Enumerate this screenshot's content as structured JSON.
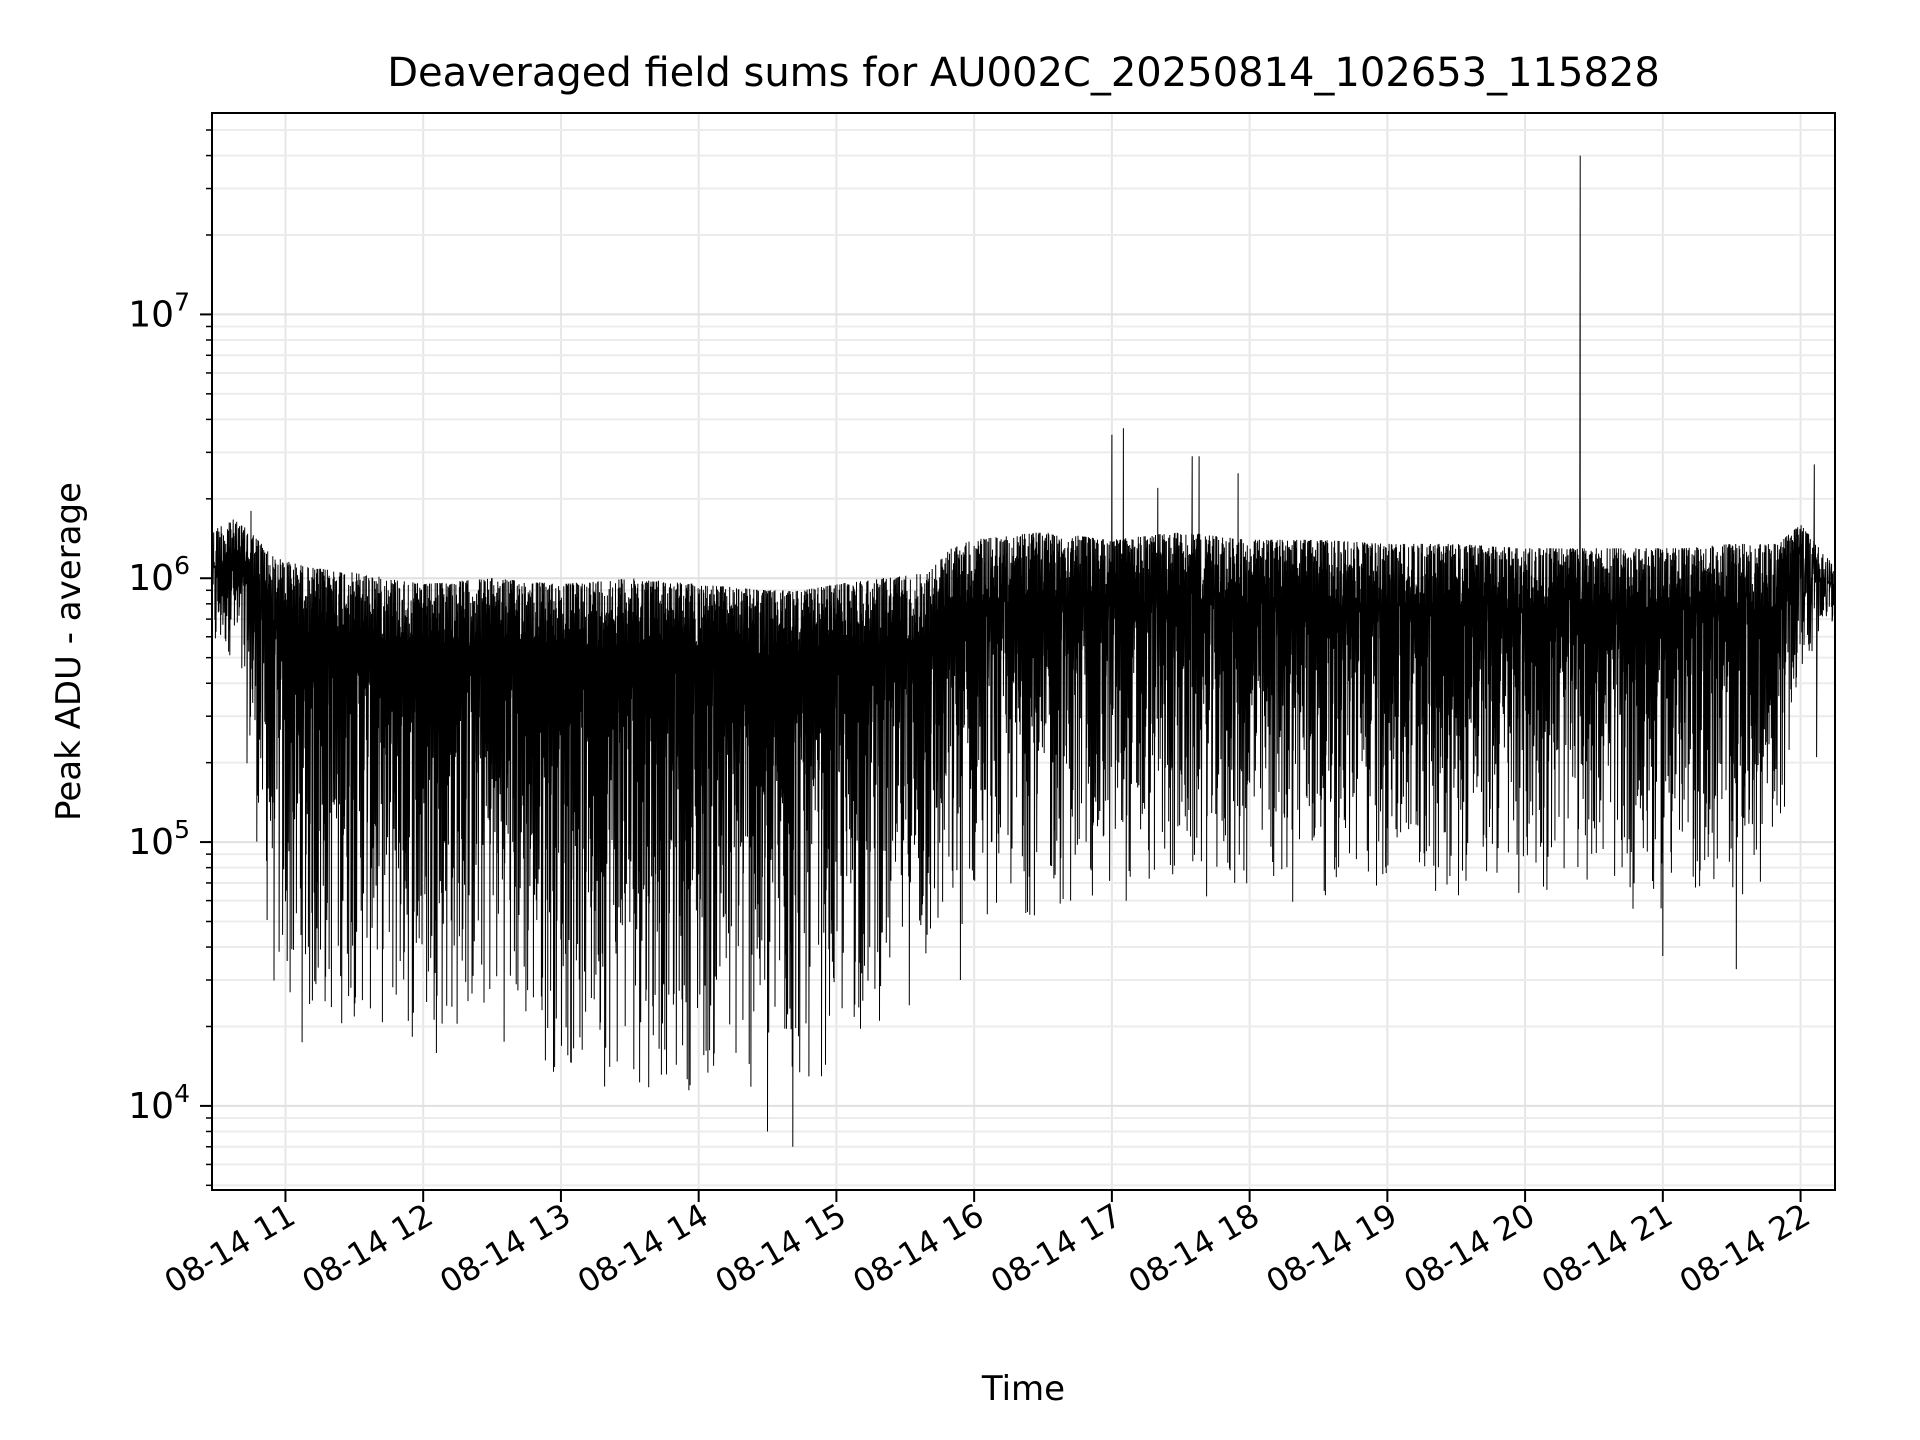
{
  "chart_data": {
    "type": "line",
    "title": "Deaveraged field sums for AU002C_20250814_102653_115828",
    "xlabel": "Time",
    "ylabel": "Peak ADU - average",
    "yscale": "log",
    "grid": true,
    "line_color": "#000000",
    "xlim": [
      "2025-08-14 10:28",
      "2025-08-14 22:15"
    ],
    "ylim": [
      4800,
      58000000
    ],
    "x_ticks": [
      {
        "value": "2025-08-14 11:00",
        "label": "08-14 11"
      },
      {
        "value": "2025-08-14 12:00",
        "label": "08-14 12"
      },
      {
        "value": "2025-08-14 13:00",
        "label": "08-14 13"
      },
      {
        "value": "2025-08-14 14:00",
        "label": "08-14 14"
      },
      {
        "value": "2025-08-14 15:00",
        "label": "08-14 15"
      },
      {
        "value": "2025-08-14 16:00",
        "label": "08-14 16"
      },
      {
        "value": "2025-08-14 17:00",
        "label": "08-14 17"
      },
      {
        "value": "2025-08-14 18:00",
        "label": "08-14 18"
      },
      {
        "value": "2025-08-14 19:00",
        "label": "08-14 19"
      },
      {
        "value": "2025-08-14 20:00",
        "label": "08-14 20"
      },
      {
        "value": "2025-08-14 21:00",
        "label": "08-14 21"
      },
      {
        "value": "2025-08-14 22:00",
        "label": "08-14 22"
      }
    ],
    "y_ticks": [
      {
        "value": 10000,
        "base": "10",
        "exp": "4"
      },
      {
        "value": 100000,
        "base": "10",
        "exp": "5"
      },
      {
        "value": 1000000,
        "base": "10",
        "exp": "6"
      },
      {
        "value": 10000000,
        "base": "10",
        "exp": "7"
      }
    ],
    "series": [
      {
        "envelope": [
          {
            "x": "2025-08-14 10:28",
            "upper": 1500000,
            "lower": 400000
          },
          {
            "x": "2025-08-14 10:36",
            "upper": 1700000,
            "lower": 500000
          },
          {
            "x": "2025-08-14 10:45",
            "upper": 1500000,
            "lower": 150000
          },
          {
            "x": "2025-08-14 10:55",
            "upper": 1200000,
            "lower": 22000
          },
          {
            "x": "2025-08-14 11:10",
            "upper": 1100000,
            "lower": 15000
          },
          {
            "x": "2025-08-14 11:30",
            "upper": 1050000,
            "lower": 20000
          },
          {
            "x": "2025-08-14 12:00",
            "upper": 950000,
            "lower": 15000
          },
          {
            "x": "2025-08-14 12:30",
            "upper": 1000000,
            "lower": 18000
          },
          {
            "x": "2025-08-14 13:00",
            "upper": 950000,
            "lower": 12000
          },
          {
            "x": "2025-08-14 13:30",
            "upper": 1000000,
            "lower": 11000
          },
          {
            "x": "2025-08-14 14:00",
            "upper": 950000,
            "lower": 11000
          },
          {
            "x": "2025-08-14 14:30",
            "upper": 900000,
            "lower": 9000
          },
          {
            "x": "2025-08-14 14:45",
            "upper": 900000,
            "lower": 10000
          },
          {
            "x": "2025-08-14 15:00",
            "upper": 950000,
            "lower": 14000
          },
          {
            "x": "2025-08-14 15:20",
            "upper": 1000000,
            "lower": 20000
          },
          {
            "x": "2025-08-14 15:40",
            "upper": 1050000,
            "lower": 25000
          },
          {
            "x": "2025-08-14 15:50",
            "upper": 1300000,
            "lower": 35000
          },
          {
            "x": "2025-08-14 16:00",
            "upper": 1400000,
            "lower": 50000
          },
          {
            "x": "2025-08-14 16:30",
            "upper": 1500000,
            "lower": 50000
          },
          {
            "x": "2025-08-14 17:00",
            "upper": 1400000,
            "lower": 55000
          },
          {
            "x": "2025-08-14 17:30",
            "upper": 1500000,
            "lower": 60000
          },
          {
            "x": "2025-08-14 18:00",
            "upper": 1400000,
            "lower": 55000
          },
          {
            "x": "2025-08-14 18:30",
            "upper": 1400000,
            "lower": 60000
          },
          {
            "x": "2025-08-14 19:00",
            "upper": 1350000,
            "lower": 60000
          },
          {
            "x": "2025-08-14 19:30",
            "upper": 1350000,
            "lower": 60000
          },
          {
            "x": "2025-08-14 20:00",
            "upper": 1300000,
            "lower": 60000
          },
          {
            "x": "2025-08-14 20:30",
            "upper": 1300000,
            "lower": 70000
          },
          {
            "x": "2025-08-14 20:50",
            "upper": 1300000,
            "lower": 50000
          },
          {
            "x": "2025-08-14 21:10",
            "upper": 1300000,
            "lower": 55000
          },
          {
            "x": "2025-08-14 21:30",
            "upper": 1350000,
            "lower": 55000
          },
          {
            "x": "2025-08-14 21:50",
            "upper": 1350000,
            "lower": 80000
          },
          {
            "x": "2025-08-14 22:00",
            "upper": 1600000,
            "lower": 400000
          },
          {
            "x": "2025-08-14 22:15",
            "upper": 1100000,
            "lower": 700000
          }
        ],
        "spikes": [
          {
            "x": "2025-08-14 10:45",
            "y": 1800000
          },
          {
            "x": "2025-08-14 15:54",
            "y": 30000
          },
          {
            "x": "2025-08-14 17:00",
            "y": 3500000
          },
          {
            "x": "2025-08-14 17:05",
            "y": 3700000
          },
          {
            "x": "2025-08-14 17:20",
            "y": 2200000
          },
          {
            "x": "2025-08-14 17:35",
            "y": 2900000
          },
          {
            "x": "2025-08-14 17:38",
            "y": 2900000
          },
          {
            "x": "2025-08-14 17:55",
            "y": 2500000
          },
          {
            "x": "2025-08-14 14:41",
            "y": 7000
          },
          {
            "x": "2025-08-14 14:30",
            "y": 8000
          },
          {
            "x": "2025-08-14 20:24",
            "y": 40000000
          },
          {
            "x": "2025-08-14 21:00",
            "y": 37000
          },
          {
            "x": "2025-08-14 21:32",
            "y": 33000
          },
          {
            "x": "2025-08-14 22:06",
            "y": 2700000
          },
          {
            "x": "2025-08-14 22:07",
            "y": 210000
          }
        ]
      }
    ]
  }
}
